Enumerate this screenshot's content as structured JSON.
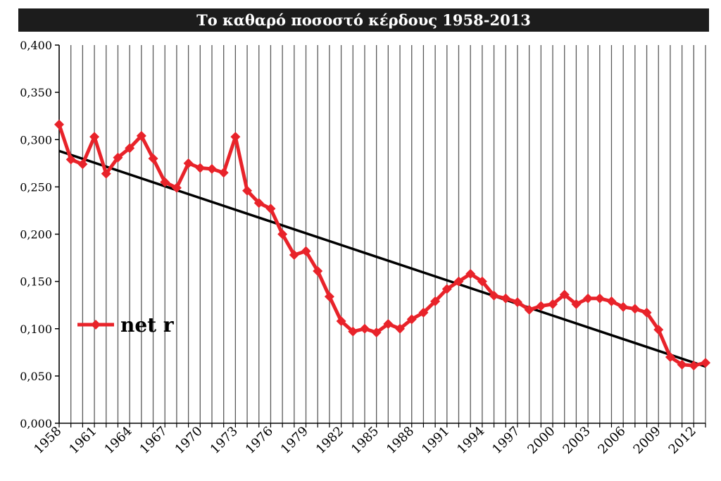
{
  "chart_data": {
    "type": "line",
    "title": "Το καθαρό ποσοστό κέρδους 1958-2013",
    "xlabel": "",
    "ylabel": "",
    "x": [
      1958,
      1959,
      1960,
      1961,
      1962,
      1963,
      1964,
      1965,
      1966,
      1967,
      1968,
      1969,
      1970,
      1971,
      1972,
      1973,
      1974,
      1975,
      1976,
      1977,
      1978,
      1979,
      1980,
      1981,
      1982,
      1983,
      1984,
      1985,
      1986,
      1987,
      1988,
      1989,
      1990,
      1991,
      1992,
      1993,
      1994,
      1995,
      1996,
      1997,
      1998,
      1999,
      2000,
      2001,
      2002,
      2003,
      2004,
      2005,
      2006,
      2007,
      2008,
      2009,
      2010,
      2011,
      2012,
      2013
    ],
    "x_tick_labels": [
      "1958",
      "1961",
      "1964",
      "1967",
      "1970",
      "1973",
      "1976",
      "1979",
      "1982",
      "1985",
      "1988",
      "1991",
      "1994",
      "1997",
      "2000",
      "2003",
      "2006",
      "2009",
      "2012"
    ],
    "ylim": [
      0,
      0.4
    ],
    "y_tick_labels": [
      "0,000",
      "0,050",
      "0,100",
      "0,150",
      "0,200",
      "0,250",
      "0,300",
      "0,350",
      "0,400"
    ],
    "grid": "vertical",
    "legend_position": "left-middle",
    "series": [
      {
        "name": "net r",
        "color": "#e8232a",
        "marker": "diamond",
        "values": [
          0.316,
          0.279,
          0.274,
          0.303,
          0.264,
          0.281,
          0.291,
          0.304,
          0.28,
          0.255,
          0.249,
          0.275,
          0.27,
          0.269,
          0.265,
          0.303,
          0.246,
          0.233,
          0.227,
          0.2,
          0.178,
          0.182,
          0.161,
          0.134,
          0.108,
          0.097,
          0.1,
          0.096,
          0.105,
          0.1,
          0.11,
          0.117,
          0.129,
          0.142,
          0.15,
          0.158,
          0.15,
          0.135,
          0.132,
          0.128,
          0.12,
          0.124,
          0.126,
          0.136,
          0.126,
          0.132,
          0.132,
          0.129,
          0.123,
          0.121,
          0.117,
          0.099,
          0.07,
          0.062,
          0.061,
          0.064
        ]
      },
      {
        "name": "",
        "type": "trendline",
        "color": "#000000",
        "values_endpoints": [
          0.288,
          0.06
        ]
      }
    ]
  }
}
